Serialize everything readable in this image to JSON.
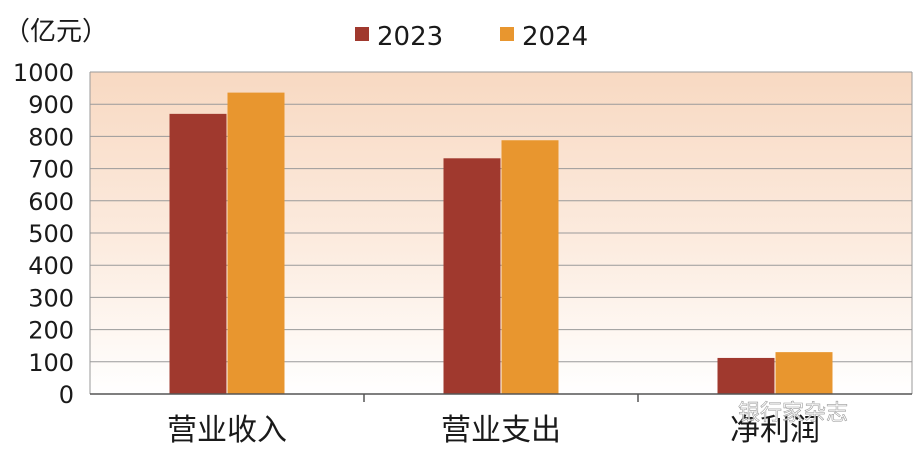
{
  "chart_data": {
    "type": "bar",
    "unit_label": "（亿元）",
    "categories": [
      "营业收入",
      "营业支出",
      "净利润"
    ],
    "series": [
      {
        "name": "2023",
        "color": "#a0392e",
        "values": [
          870,
          732,
          112
        ]
      },
      {
        "name": "2024",
        "color": "#e8962f",
        "values": [
          936,
          788,
          130
        ]
      }
    ],
    "ylim": [
      0,
      1000
    ],
    "yticks": [
      "0",
      "100",
      "200",
      "300",
      "400",
      "500",
      "600",
      "700",
      "800",
      "900",
      "1000"
    ],
    "grid": true,
    "legend_position": "top-center",
    "background": "gradient peach-to-white"
  },
  "watermark": "银行家杂志"
}
